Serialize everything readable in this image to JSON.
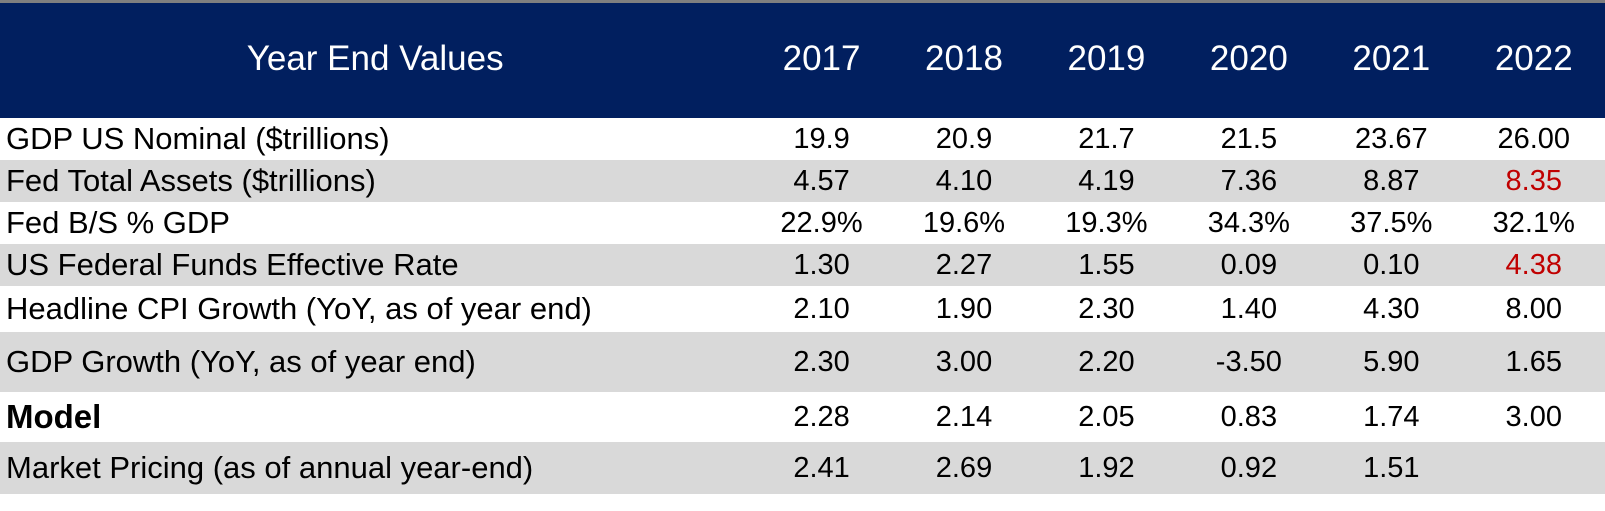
{
  "colors": {
    "header_bg": "#011f5f",
    "header_text": "#ffffff",
    "shade_row": "#d9d9d9",
    "highlight": "#c00000"
  },
  "chart_data": {
    "type": "table",
    "columns": [
      "Year End Values",
      "2017",
      "2018",
      "2019",
      "2020",
      "2021",
      "2022"
    ],
    "rows": [
      {
        "label": "GDP US Nominal ($trillions)",
        "values": [
          "19.9",
          "20.9",
          "21.7",
          "21.5",
          "23.67",
          "26.00"
        ],
        "highlight": [
          false,
          false,
          false,
          false,
          false,
          false
        ],
        "bold": false,
        "shaded": false
      },
      {
        "label": "Fed Total Assets ($trillions)",
        "values": [
          "4.57",
          "4.10",
          "4.19",
          "7.36",
          "8.87",
          "8.35"
        ],
        "highlight": [
          false,
          false,
          false,
          false,
          false,
          true
        ],
        "bold": false,
        "shaded": true
      },
      {
        "label": "Fed B/S % GDP",
        "values": [
          "22.9%",
          "19.6%",
          "19.3%",
          "34.3%",
          "37.5%",
          "32.1%"
        ],
        "highlight": [
          false,
          false,
          false,
          false,
          false,
          false
        ],
        "bold": false,
        "shaded": false
      },
      {
        "label": "US Federal Funds Effective Rate",
        "values": [
          "1.30",
          "2.27",
          "1.55",
          "0.09",
          "0.10",
          "4.38"
        ],
        "highlight": [
          false,
          false,
          false,
          false,
          false,
          true
        ],
        "bold": false,
        "shaded": true
      },
      {
        "label": "Headline CPI Growth (YoY, as of year end)",
        "values": [
          "2.10",
          "1.90",
          "2.30",
          "1.40",
          "4.30",
          "8.00"
        ],
        "highlight": [
          false,
          false,
          false,
          false,
          false,
          false
        ],
        "bold": false,
        "shaded": false
      },
      {
        "label": "GDP Growth (YoY, as of year end)",
        "values": [
          "2.30",
          "3.00",
          "2.20",
          "-3.50",
          "5.90",
          "1.65"
        ],
        "highlight": [
          false,
          false,
          false,
          false,
          false,
          false
        ],
        "bold": false,
        "shaded": true
      },
      {
        "label": "Model",
        "values": [
          "2.28",
          "2.14",
          "2.05",
          "0.83",
          "1.74",
          "3.00"
        ],
        "highlight": [
          false,
          false,
          false,
          false,
          false,
          false
        ],
        "bold": true,
        "shaded": false
      },
      {
        "label": "Market Pricing (as of annual year-end)",
        "values": [
          "2.41",
          "2.69",
          "1.92",
          "0.92",
          "1.51",
          ""
        ],
        "highlight": [
          false,
          false,
          false,
          false,
          false,
          false
        ],
        "bold": false,
        "shaded": true
      }
    ]
  }
}
